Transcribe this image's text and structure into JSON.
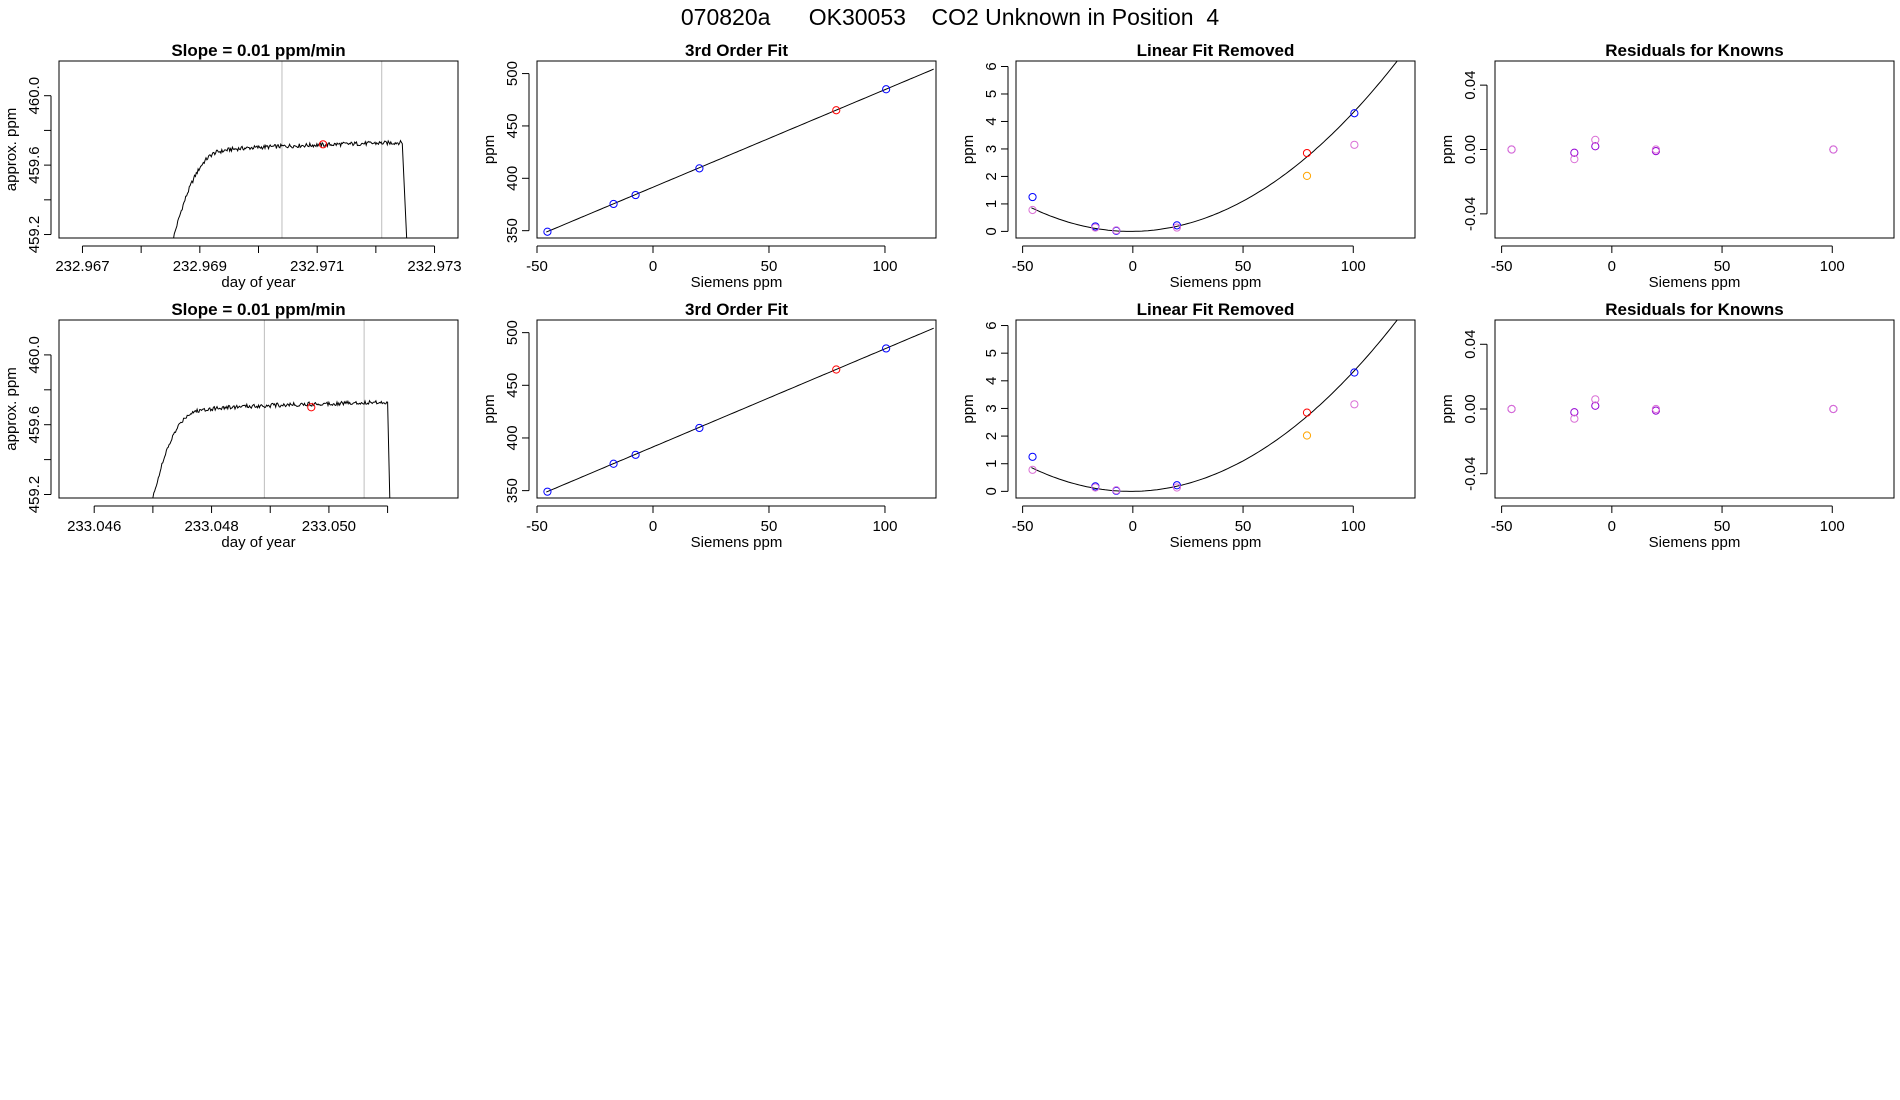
{
  "page": {
    "title": "070820a      OK30053    CO2 Unknown in Position  4"
  },
  "colors": {
    "line": "#000000",
    "grid_vertical": "#bebebe",
    "known_blue": "#0000ff",
    "unknown_red": "#ff0000",
    "violet": "#9400d3",
    "orchid": "#da70d6",
    "orange": "#ffa500"
  },
  "chart_data": [
    {
      "id": "slope-1",
      "type": "line",
      "title": "Slope =  0.01  ppm/min",
      "xlabel": "day of year",
      "ylabel": "approx. ppm",
      "xlim": [
        232.9666,
        232.9734
      ],
      "ylim": [
        459.18,
        460.2
      ],
      "xticks": [
        232.967,
        232.968,
        232.969,
        232.97,
        232.971,
        232.972,
        232.973
      ],
      "xtick_labels": [
        "232.967",
        "",
        "232.969",
        "",
        "232.971",
        "",
        "232.973"
      ],
      "yticks": [
        459.2,
        459.4,
        459.6,
        459.8,
        460.0
      ],
      "ytick_labels": [
        "459.2",
        "",
        "459.6",
        "",
        "460.0"
      ],
      "vlines": [
        232.9704,
        232.9721
      ],
      "trace": {
        "t0": 232.96855,
        "t_plateau": 232.9694,
        "t_end_flat": 232.97245,
        "t_end": 232.97255,
        "start": 459.18,
        "plateau": 459.72,
        "rise": 0.05,
        "noise": 0.012,
        "end": 459.0
      },
      "marker": {
        "x": 232.9711,
        "y": 459.72
      }
    },
    {
      "id": "fit-1",
      "type": "scatter",
      "title": "3rd Order Fit",
      "xlabel": "Siemens ppm",
      "ylabel": "ppm",
      "xlim": [
        -50,
        122
      ],
      "ylim": [
        343,
        512
      ],
      "xticks": [
        -50,
        0,
        50,
        100
      ],
      "xtick_labels": [
        "-50",
        "0",
        "50",
        "100"
      ],
      "yticks": [
        350,
        400,
        450,
        500
      ],
      "ytick_labels": [
        "350",
        "400",
        "450",
        "500"
      ],
      "curve": {
        "x0": -46,
        "x1": 121,
        "a": 391.5,
        "b": 0.9316
      },
      "points": [
        {
          "x": -45.5,
          "y": 349,
          "color": "known_blue"
        },
        {
          "x": -17,
          "y": 375.5,
          "color": "known_blue"
        },
        {
          "x": -7.5,
          "y": 384,
          "color": "known_blue"
        },
        {
          "x": 20,
          "y": 409.5,
          "color": "known_blue"
        },
        {
          "x": 79,
          "y": 465,
          "color": "unknown_red"
        },
        {
          "x": 100.5,
          "y": 485,
          "color": "known_blue"
        }
      ]
    },
    {
      "id": "linrem-1",
      "type": "scatter",
      "title": "Linear Fit Removed",
      "xlabel": "Siemens ppm",
      "ylabel": "ppm",
      "xlim": [
        -53,
        128
      ],
      "ylim": [
        -0.24,
        6.2
      ],
      "xticks": [
        -50,
        0,
        50,
        100
      ],
      "xtick_labels": [
        "-50",
        "0",
        "50",
        "100"
      ],
      "yticks": [
        0,
        1,
        2,
        3,
        4,
        5,
        6
      ],
      "ytick_labels": [
        "0",
        "1",
        "2",
        "3",
        "4",
        "5",
        "6"
      ],
      "curve": {
        "x0": -46,
        "x1": 121,
        "vertex": -1,
        "k": 0.000424
      },
      "points": [
        {
          "x": -45.5,
          "y": 1.25,
          "color": "known_blue"
        },
        {
          "x": -45.5,
          "y": 0.78,
          "color": "orchid"
        },
        {
          "x": -17,
          "y": 0.18,
          "color": "known_blue"
        },
        {
          "x": -17,
          "y": 0.14,
          "color": "orchid"
        },
        {
          "x": -7.5,
          "y": 0.02,
          "color": "known_blue"
        },
        {
          "x": -7.5,
          "y": 0.04,
          "color": "orchid"
        },
        {
          "x": 20,
          "y": 0.22,
          "color": "known_blue"
        },
        {
          "x": 20,
          "y": 0.14,
          "color": "orchid"
        },
        {
          "x": 79,
          "y": 2.85,
          "color": "unknown_red"
        },
        {
          "x": 79,
          "y": 2.02,
          "color": "orange"
        },
        {
          "x": 100.5,
          "y": 4.3,
          "color": "known_blue"
        },
        {
          "x": 100.5,
          "y": 3.15,
          "color": "orchid"
        }
      ]
    },
    {
      "id": "resid-1",
      "type": "scatter",
      "title": "Residuals for Knowns",
      "xlabel": "Siemens ppm",
      "ylabel": "ppm",
      "xlim": [
        -53,
        128
      ],
      "ylim": [
        -0.055,
        0.055
      ],
      "xticks": [
        -50,
        0,
        50,
        100
      ],
      "xtick_labels": [
        "-50",
        "0",
        "50",
        "100"
      ],
      "yticks": [
        -0.04,
        0.0,
        0.04
      ],
      "ytick_labels": [
        "-0.04",
        "0.00",
        "0.04"
      ],
      "points": [
        {
          "x": -45.5,
          "y": 0.0,
          "color": "violet"
        },
        {
          "x": -45.5,
          "y": 0.0,
          "color": "orchid"
        },
        {
          "x": -17,
          "y": -0.002,
          "color": "violet"
        },
        {
          "x": -17,
          "y": -0.006,
          "color": "orchid"
        },
        {
          "x": -7.5,
          "y": 0.002,
          "color": "violet"
        },
        {
          "x": -7.5,
          "y": 0.006,
          "color": "orchid"
        },
        {
          "x": 20,
          "y": -0.001,
          "color": "violet"
        },
        {
          "x": 20,
          "y": 0.0,
          "color": "orchid"
        },
        {
          "x": 100.5,
          "y": 0.0,
          "color": "violet"
        },
        {
          "x": 100.5,
          "y": 0.0,
          "color": "orchid"
        }
      ]
    },
    {
      "id": "slope-2",
      "type": "line",
      "title": "Slope =  0.01  ppm/min",
      "xlabel": "day of year",
      "ylabel": "approx. ppm",
      "xlim": [
        233.0454,
        233.0522
      ],
      "ylim": [
        459.18,
        460.2
      ],
      "xticks": [
        233.046,
        233.047,
        233.048,
        233.049,
        233.05,
        233.051
      ],
      "xtick_labels": [
        "233.046",
        "",
        "233.048",
        "",
        "233.050",
        ""
      ],
      "yticks": [
        459.2,
        459.4,
        459.6,
        459.8,
        460.0
      ],
      "ytick_labels": [
        "459.2",
        "",
        "459.6",
        "",
        "460.0"
      ],
      "vlines": [
        233.0489,
        233.0506
      ],
      "trace": {
        "t0": 233.047,
        "t_plateau": 233.0478,
        "t_end_flat": 233.051,
        "t_end": 233.05105,
        "start": 459.18,
        "plateau": 459.72,
        "rise": 0.05,
        "noise": 0.012,
        "end": 459.0
      },
      "marker": {
        "x": 233.0497,
        "y": 459.7
      }
    },
    {
      "id": "fit-2",
      "type": "scatter",
      "title": "3rd Order Fit",
      "xlabel": "Siemens ppm",
      "ylabel": "ppm",
      "xlim": [
        -50,
        122
      ],
      "ylim": [
        343,
        512
      ],
      "xticks": [
        -50,
        0,
        50,
        100
      ],
      "xtick_labels": [
        "-50",
        "0",
        "50",
        "100"
      ],
      "yticks": [
        350,
        400,
        450,
        500
      ],
      "ytick_labels": [
        "350",
        "400",
        "450",
        "500"
      ],
      "curve": {
        "x0": -46,
        "x1": 121,
        "a": 391.5,
        "b": 0.9316
      },
      "points": [
        {
          "x": -45.5,
          "y": 349,
          "color": "known_blue"
        },
        {
          "x": -17,
          "y": 375.5,
          "color": "known_blue"
        },
        {
          "x": -7.5,
          "y": 384,
          "color": "known_blue"
        },
        {
          "x": 20,
          "y": 409.5,
          "color": "known_blue"
        },
        {
          "x": 79,
          "y": 465,
          "color": "unknown_red"
        },
        {
          "x": 100.5,
          "y": 485,
          "color": "known_blue"
        }
      ]
    },
    {
      "id": "linrem-2",
      "type": "scatter",
      "title": "Linear Fit Removed",
      "xlabel": "Siemens ppm",
      "ylabel": "ppm",
      "xlim": [
        -53,
        128
      ],
      "ylim": [
        -0.24,
        6.2
      ],
      "xticks": [
        -50,
        0,
        50,
        100
      ],
      "xtick_labels": [
        "-50",
        "0",
        "50",
        "100"
      ],
      "yticks": [
        0,
        1,
        2,
        3,
        4,
        5,
        6
      ],
      "ytick_labels": [
        "0",
        "1",
        "2",
        "3",
        "4",
        "5",
        "6"
      ],
      "curve": {
        "x0": -46,
        "x1": 121,
        "vertex": -1,
        "k": 0.000424
      },
      "points": [
        {
          "x": -45.5,
          "y": 1.25,
          "color": "known_blue"
        },
        {
          "x": -45.5,
          "y": 0.78,
          "color": "orchid"
        },
        {
          "x": -17,
          "y": 0.18,
          "color": "known_blue"
        },
        {
          "x": -17,
          "y": 0.14,
          "color": "orchid"
        },
        {
          "x": -7.5,
          "y": 0.02,
          "color": "known_blue"
        },
        {
          "x": -7.5,
          "y": 0.04,
          "color": "orchid"
        },
        {
          "x": 20,
          "y": 0.22,
          "color": "known_blue"
        },
        {
          "x": 20,
          "y": 0.14,
          "color": "orchid"
        },
        {
          "x": 79,
          "y": 2.85,
          "color": "unknown_red"
        },
        {
          "x": 79,
          "y": 2.02,
          "color": "orange"
        },
        {
          "x": 100.5,
          "y": 4.3,
          "color": "known_blue"
        },
        {
          "x": 100.5,
          "y": 3.15,
          "color": "orchid"
        }
      ]
    },
    {
      "id": "resid-2",
      "type": "scatter",
      "title": "Residuals for Knowns",
      "xlabel": "Siemens ppm",
      "ylabel": "ppm",
      "xlim": [
        -53,
        128
      ],
      "ylim": [
        -0.055,
        0.055
      ],
      "xticks": [
        -50,
        0,
        50,
        100
      ],
      "xtick_labels": [
        "-50",
        "0",
        "50",
        "100"
      ],
      "yticks": [
        -0.04,
        0.0,
        0.04
      ],
      "ytick_labels": [
        "-0.04",
        "0.00",
        "0.04"
      ],
      "points": [
        {
          "x": -45.5,
          "y": 0.0,
          "color": "violet"
        },
        {
          "x": -45.5,
          "y": 0.0,
          "color": "orchid"
        },
        {
          "x": -17,
          "y": -0.002,
          "color": "violet"
        },
        {
          "x": -17,
          "y": -0.006,
          "color": "orchid"
        },
        {
          "x": -7.5,
          "y": 0.002,
          "color": "violet"
        },
        {
          "x": -7.5,
          "y": 0.006,
          "color": "orchid"
        },
        {
          "x": 20,
          "y": -0.001,
          "color": "violet"
        },
        {
          "x": 20,
          "y": 0.0,
          "color": "orchid"
        },
        {
          "x": 100.5,
          "y": 0.0,
          "color": "violet"
        },
        {
          "x": 100.5,
          "y": 0.0,
          "color": "orchid"
        }
      ]
    }
  ]
}
